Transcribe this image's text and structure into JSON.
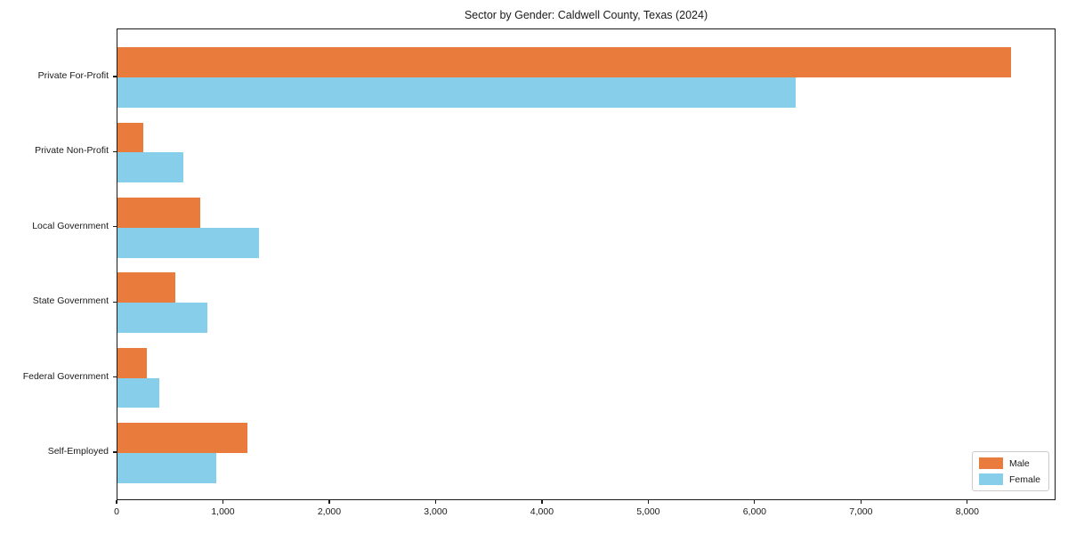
{
  "chart_data": {
    "type": "bar",
    "orientation": "horizontal",
    "title": "Sector by Gender: Caldwell County, Texas (2024)",
    "categories": [
      "Private For-Profit",
      "Private Non-Profit",
      "Local Government",
      "State Government",
      "Federal Government",
      "Self-Employed"
    ],
    "series": [
      {
        "name": "Male",
        "color": "#e97b3d",
        "values": [
          8400,
          240,
          780,
          545,
          280,
          1220
        ]
      },
      {
        "name": "Female",
        "color": "#87ceeb",
        "values": [
          6380,
          620,
          1330,
          845,
          390,
          930
        ]
      }
    ],
    "xlabel": "",
    "ylabel": "",
    "xlim": [
      0,
      8830
    ],
    "x_ticks": [
      0,
      1000,
      2000,
      3000,
      4000,
      5000,
      6000,
      7000,
      8000
    ],
    "x_tick_labels": [
      "0",
      "1,000",
      "2,000",
      "3,000",
      "4,000",
      "5,000",
      "6,000",
      "7,000",
      "8,000"
    ],
    "grid": false,
    "legend_position": "lower right"
  }
}
